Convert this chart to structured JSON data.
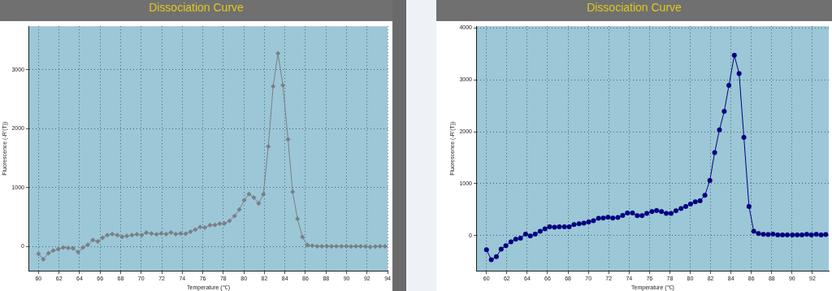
{
  "chart_data": [
    {
      "type": "line",
      "title": "Dissociation Curve",
      "xlabel": "Temperature (℃)",
      "ylabel": "Fluorescence (-R'(T))",
      "xlim": [
        59.1,
        94
      ],
      "ylim": [
        -413,
        3740
      ],
      "xticks": [
        60,
        62,
        64,
        66,
        68,
        70,
        72,
        74,
        76,
        78,
        80,
        82,
        84,
        86,
        88,
        90,
        92,
        94
      ],
      "yticks": [
        0,
        1000,
        2000,
        3000
      ],
      "grid": true,
      "marker": "diamond",
      "line_style": "solid",
      "series": [
        {
          "color": "#7a7f86",
          "x": [
            60,
            60.47,
            60.97,
            61.44,
            61.93,
            62.4,
            62.9,
            63.37,
            63.86,
            64.33,
            64.8,
            65.3,
            65.77,
            66.24,
            66.7,
            67.18,
            67.68,
            68.15,
            68.6,
            69.1,
            69.58,
            70.05,
            70.5,
            71,
            71.5,
            71.96,
            72.43,
            72.9,
            73.37,
            73.84,
            74.33,
            74.8,
            75.27,
            75.74,
            76.2,
            76.7,
            77.18,
            77.65,
            78.12,
            78.6,
            79.1,
            79.56,
            80.03,
            80.5,
            80.97,
            81.44,
            81.9,
            82.38,
            82.85,
            83.32,
            83.8,
            84.3,
            84.75,
            85.22,
            85.7,
            86.2,
            86.66,
            87.13,
            87.6,
            88.07,
            88.54,
            89,
            89.5,
            89.96,
            90.43,
            90.9,
            91.37,
            91.84,
            92.3,
            92.8,
            93.27,
            93.74
          ],
          "values": [
            -124,
            -216,
            -115,
            -69,
            -46,
            -18,
            -23,
            -32,
            -92,
            -18,
            28,
            110,
            87,
            147,
            193,
            211,
            193,
            165,
            179,
            193,
            207,
            193,
            234,
            220,
            207,
            220,
            211,
            239,
            211,
            220,
            216,
            253,
            285,
            331,
            321,
            363,
            367,
            386,
            395,
            436,
            519,
            629,
            785,
            891,
            831,
            730,
            886,
            1699,
            2718,
            3278,
            2736,
            1818,
            927,
            468,
            161,
            23,
            14,
            5,
            5,
            5,
            5,
            5,
            5,
            5,
            0,
            5,
            5,
            0,
            -5,
            0,
            5,
            5
          ]
        }
      ]
    },
    {
      "type": "line",
      "title": "Dissociation Curve",
      "xlabel": "Temperature (℃)",
      "ylabel": "Fluorescence (-R'(T))",
      "xlim": [
        59.06,
        93.6
      ],
      "ylim": [
        -677,
        4030
      ],
      "xticks": [
        60,
        62,
        64,
        66,
        68,
        70,
        72,
        74,
        76,
        78,
        80,
        82,
        84,
        86,
        88,
        90,
        92
      ],
      "yticks": [
        0,
        1000,
        2000,
        3000,
        4000
      ],
      "grid": true,
      "marker": "circle",
      "line_style": "solid",
      "series": [
        {
          "color": "#000080",
          "x": [
            60,
            60.47,
            60.97,
            61.44,
            61.9,
            62.4,
            62.87,
            63.34,
            63.84,
            64.3,
            64.78,
            65.27,
            65.74,
            66.2,
            66.68,
            67.15,
            67.65,
            68.12,
            68.59,
            69.09,
            69.56,
            70.03,
            70.5,
            71,
            71.46,
            71.93,
            72.4,
            72.9,
            73.37,
            73.84,
            74.33,
            74.8,
            75.27,
            75.74,
            76.24,
            76.7,
            77.18,
            77.65,
            78.12,
            78.6,
            79.1,
            79.56,
            80.03,
            80.5,
            80.97,
            81.44,
            81.93,
            82.4,
            82.87,
            83.34,
            83.8,
            84.33,
            84.8,
            85.27,
            85.77,
            86.24,
            86.7,
            87.18,
            87.65,
            88.12,
            88.59,
            89.06,
            89.53,
            90.03,
            90.5,
            90.97,
            91.44,
            91.9,
            92.38,
            92.85,
            93.3
          ],
          "values": [
            -271,
            -464,
            -406,
            -260,
            -193,
            -120,
            -68,
            -47,
            31,
            -5,
            31,
            83,
            130,
            172,
            161,
            172,
            172,
            172,
            214,
            229,
            240,
            266,
            286,
            333,
            339,
            354,
            339,
            349,
            391,
            437,
            437,
            385,
            385,
            427,
            464,
            484,
            464,
            427,
            427,
            479,
            521,
            562,
            609,
            651,
            672,
            776,
            1063,
            1599,
            2036,
            2391,
            2891,
            3469,
            3120,
            1891,
            562,
            83,
            42,
            26,
            21,
            31,
            16,
            16,
            16,
            16,
            16,
            16,
            26,
            16,
            26,
            16,
            21
          ]
        }
      ]
    }
  ]
}
